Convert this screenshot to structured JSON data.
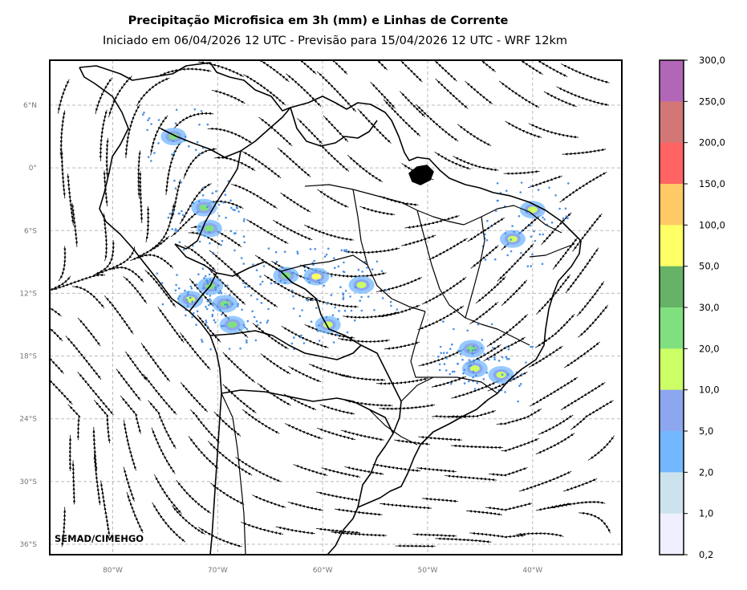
{
  "title": "Precipitação Microfisica em 3h (mm) e Linhas de Corrente",
  "subtitle": "Iniciado em 06/04/2026 12 UTC - Previsão para 15/04/2026 12 UTC - WRF 12km",
  "credit": "SEMAD/CIMEHGO",
  "map": {
    "lat_ticks": [
      {
        "label": "6°N",
        "value": 6
      },
      {
        "label": "0°",
        "value": 0
      },
      {
        "label": "6°S",
        "value": -6
      },
      {
        "label": "12°S",
        "value": -12
      },
      {
        "label": "18°S",
        "value": -18
      },
      {
        "label": "24°S",
        "value": -24
      },
      {
        "label": "30°S",
        "value": -30
      },
      {
        "label": "36°S",
        "value": -36
      }
    ],
    "lon_ticks": [
      {
        "label": "80°W",
        "value": -80
      },
      {
        "label": "70°W",
        "value": -70
      },
      {
        "label": "60°W",
        "value": -60
      },
      {
        "label": "50°W",
        "value": -50
      },
      {
        "label": "40°W",
        "value": -40
      }
    ],
    "grid": true,
    "lon_range": [
      -86,
      -31.5
    ],
    "lat_range": [
      -37,
      10.3
    ]
  },
  "colorbar": {
    "labels": [
      "300,0",
      "250,0",
      "200,0",
      "150,0",
      "100,0",
      "50,0",
      "30,0",
      "20,0",
      "10,0",
      "5,0",
      "2,0",
      "1,0",
      "0,2"
    ],
    "colors": [
      "#b266b8",
      "#d37676",
      "#ff6363",
      "#ffc966",
      "#ffff66",
      "#66b266",
      "#80e080",
      "#ccff66",
      "#8ca6f0",
      "#73b8ff",
      "#cce3ee",
      "#efefff"
    ]
  },
  "precip_cells": [
    {
      "lon": -74.2,
      "lat": 3.0,
      "level": "20,0"
    },
    {
      "lon": -71.3,
      "lat": -3.8,
      "level": "20,0"
    },
    {
      "lon": -70.8,
      "lat": -5.8,
      "level": "20,0"
    },
    {
      "lon": -72.6,
      "lat": -12.6,
      "level": "10,0"
    },
    {
      "lon": -70.7,
      "lat": -11.3,
      "level": "20,0"
    },
    {
      "lon": -69.3,
      "lat": -13.0,
      "level": "20,0"
    },
    {
      "lon": -68.6,
      "lat": -15.0,
      "level": "20,0"
    },
    {
      "lon": -63.5,
      "lat": -10.3,
      "level": "20,0"
    },
    {
      "lon": -60.6,
      "lat": -10.4,
      "level": "50,0"
    },
    {
      "lon": -59.5,
      "lat": -15.0,
      "level": "10,0"
    },
    {
      "lon": -56.3,
      "lat": -11.2,
      "level": "10,0"
    },
    {
      "lon": -45.8,
      "lat": -17.3,
      "level": "20,0"
    },
    {
      "lon": -45.5,
      "lat": -19.2,
      "level": "10,0"
    },
    {
      "lon": -43.0,
      "lat": -19.8,
      "level": "10,0"
    },
    {
      "lon": -40.0,
      "lat": -4.0,
      "level": "10,0"
    },
    {
      "lon": -41.9,
      "lat": -6.8,
      "level": "10,0"
    }
  ]
}
